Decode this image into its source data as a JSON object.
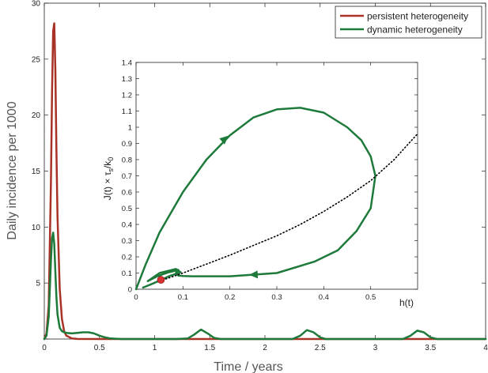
{
  "chart_data": [
    {
      "type": "line",
      "xlabel": "Time / years",
      "ylabel": "Daily incidence per 1000",
      "xlim": [
        0,
        4
      ],
      "ylim": [
        0,
        30
      ],
      "xticks": [
        0,
        0.5,
        1,
        1.5,
        2,
        2.5,
        3,
        3.5,
        4
      ],
      "xtick_labels": [
        "0",
        "0.5",
        "1",
        "1.5",
        "2",
        "2.5",
        "3",
        "3.5",
        "4"
      ],
      "yticks": [
        0,
        5,
        10,
        15,
        20,
        25,
        30
      ],
      "ytick_labels": [
        "",
        "5",
        "10",
        "15",
        "20",
        "25",
        "30"
      ],
      "grid": false,
      "legend_position": "top-right",
      "series": [
        {
          "name": "persistent heterogeneity",
          "color": "#a93226",
          "x": [
            0,
            0.02,
            0.04,
            0.06,
            0.07,
            0.08,
            0.09,
            0.1,
            0.11,
            0.12,
            0.14,
            0.16,
            0.18,
            0.2,
            0.25,
            0.3,
            0.5,
            1.0,
            2.0,
            3.0,
            4.0
          ],
          "y": [
            0,
            0.5,
            3,
            14,
            22,
            27.5,
            28.2,
            24,
            17,
            11,
            4.5,
            1.8,
            0.7,
            0.3,
            0.05,
            0.01,
            0,
            0,
            0,
            0,
            0
          ]
        },
        {
          "name": "dynamic heterogeneity",
          "color": "#1e7a3a",
          "x": [
            0,
            0.02,
            0.04,
            0.06,
            0.07,
            0.08,
            0.09,
            0.1,
            0.11,
            0.12,
            0.14,
            0.16,
            0.18,
            0.2,
            0.25,
            0.3,
            0.35,
            0.4,
            0.45,
            0.5,
            0.55,
            0.6,
            0.7,
            0.8,
            1.0,
            1.2,
            1.3,
            1.36,
            1.42,
            1.48,
            1.54,
            1.6,
            1.7,
            2.0,
            2.25,
            2.32,
            2.38,
            2.44,
            2.5,
            2.55,
            2.7,
            3.0,
            3.25,
            3.32,
            3.38,
            3.44,
            3.5,
            3.56,
            3.7,
            4.0
          ],
          "y": [
            0,
            0.3,
            2.0,
            7.0,
            9.0,
            9.5,
            8.5,
            6.0,
            3.8,
            2.2,
            1.0,
            0.7,
            0.6,
            0.55,
            0.5,
            0.55,
            0.6,
            0.6,
            0.5,
            0.3,
            0.15,
            0.05,
            0,
            0,
            0,
            0,
            0.05,
            0.4,
            0.85,
            0.5,
            0.1,
            0,
            0,
            0,
            0,
            0.3,
            0.8,
            0.6,
            0.15,
            0,
            0,
            0,
            0,
            0.3,
            0.75,
            0.6,
            0.15,
            0,
            0,
            0
          ]
        }
      ]
    },
    {
      "type": "line",
      "xlabel": "h(t)",
      "ylabel": "J(t) × τs/k0",
      "xlim": [
        0,
        0.6
      ],
      "ylim": [
        0,
        1.4
      ],
      "xticks": [
        0,
        0.1,
        0.2,
        0.3,
        0.4,
        0.5
      ],
      "xtick_labels": [
        "0",
        "0.1",
        "0.2",
        "0.3",
        "0.4",
        "0.5"
      ],
      "yticks": [
        0,
        0.1,
        0.2,
        0.3,
        0.4,
        0.5,
        0.6,
        0.7,
        0.8,
        0.9,
        1,
        1.1,
        1.2,
        1.3,
        1.4
      ],
      "ytick_labels": [
        "0",
        "0.1",
        "0.2",
        "0.3",
        "0.4",
        "0.5",
        "0.6",
        "0.7",
        "0.8",
        "0.9",
        "1",
        "1.1",
        "1.2",
        "1.3",
        "1.4"
      ],
      "grid": false,
      "series": [
        {
          "color": "#1e7a3a",
          "style": "solid",
          "x": [
            0.0,
            0.02,
            0.05,
            0.1,
            0.15,
            0.2,
            0.25,
            0.3,
            0.35,
            0.4,
            0.45,
            0.48,
            0.5,
            0.51,
            0.5,
            0.47,
            0.43,
            0.38,
            0.3,
            0.2,
            0.12,
            0.1,
            0.09,
            0.085,
            0.09,
            0.085,
            0.07,
            0.045,
            0.025,
            0.05,
            0.085,
            0.095,
            0.07,
            0.04,
            0.015
          ],
          "y": [
            0.0,
            0.15,
            0.35,
            0.6,
            0.8,
            0.95,
            1.06,
            1.11,
            1.12,
            1.09,
            1.0,
            0.92,
            0.82,
            0.7,
            0.5,
            0.36,
            0.24,
            0.17,
            0.1,
            0.08,
            0.08,
            0.082,
            0.085,
            0.1,
            0.12,
            0.115,
            0.105,
            0.08,
            0.05,
            0.1,
            0.125,
            0.105,
            0.08,
            0.04,
            0.01
          ]
        },
        {
          "color": "#000000",
          "style": "dotted",
          "x": [
            0.05,
            0.1,
            0.15,
            0.2,
            0.25,
            0.3,
            0.35,
            0.4,
            0.45,
            0.5,
            0.55,
            0.6
          ],
          "y": [
            0.05,
            0.1,
            0.155,
            0.21,
            0.27,
            0.33,
            0.4,
            0.48,
            0.57,
            0.67,
            0.8,
            0.96
          ]
        }
      ],
      "points": [
        {
          "x": 0.053,
          "y": 0.058,
          "color": "#d93030"
        }
      ],
      "arrows": [
        {
          "x": 0.19,
          "y": 0.93
        },
        {
          "x": 0.25,
          "y": 0.09
        }
      ]
    }
  ]
}
